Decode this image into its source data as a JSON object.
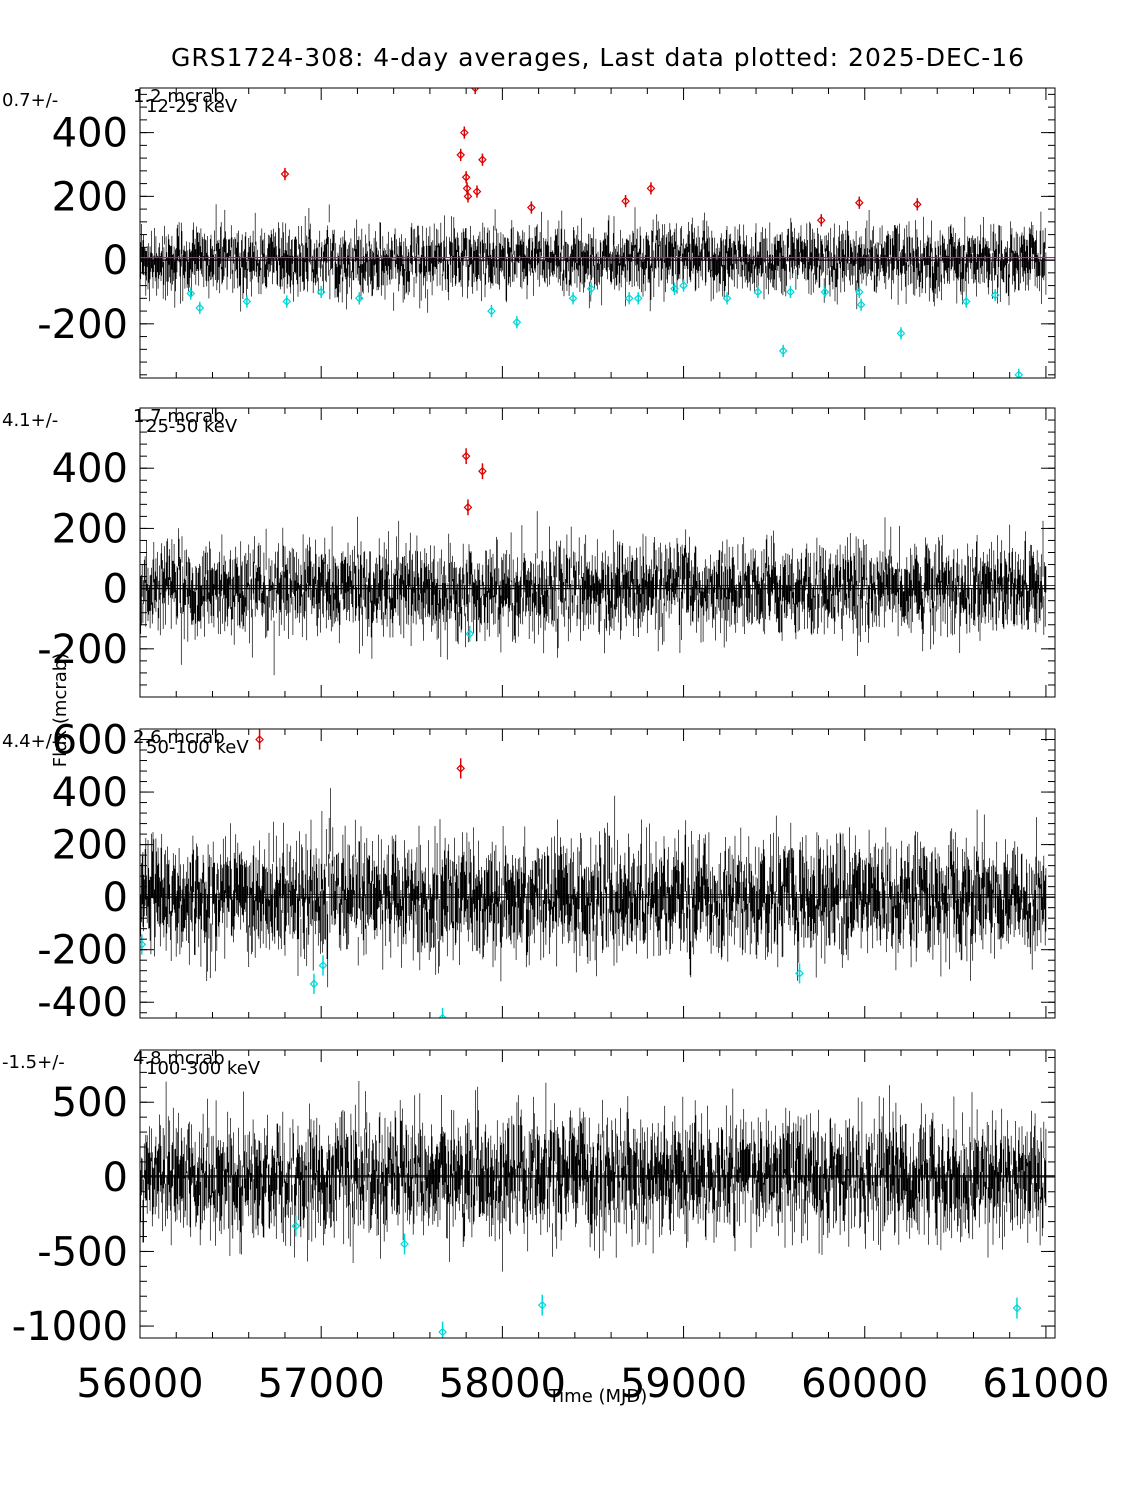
{
  "chart_data": {
    "type": "scatter",
    "title": "GRS1724-308:  4-day averages,  Last data plotted: 2025-DEC-16",
    "xlabel": "Time (MJD)",
    "ylabel": "Flux (mcrab)",
    "xlim": [
      56000,
      61050
    ],
    "xticks": [
      "56000",
      "57000",
      "58000",
      "59000",
      "60000",
      "61000"
    ],
    "colors": {
      "normal": "#000000",
      "high": "#dd0000",
      "low": "#00d8d8",
      "mean_line_top": "#dd00dd"
    },
    "panels": [
      {
        "band": "12-25 keV",
        "mean_text": "0.7+/-",
        "err_text": "1.2 mcrab",
        "ylim": [
          -370,
          540
        ],
        "yticks": [
          "-200",
          "0",
          "200",
          "400"
        ],
        "tick_values": [
          -200,
          0,
          200,
          400
        ],
        "noise_sigma": 55,
        "high_points": [
          [
            56800,
            270
          ],
          [
            57770,
            330
          ],
          [
            57790,
            400
          ],
          [
            57800,
            260
          ],
          [
            57805,
            225
          ],
          [
            57810,
            200
          ],
          [
            57850,
            540
          ],
          [
            57860,
            215
          ],
          [
            57890,
            315
          ],
          [
            58160,
            165
          ],
          [
            58680,
            185
          ],
          [
            58820,
            225
          ],
          [
            59970,
            180
          ],
          [
            60290,
            175
          ],
          [
            59760,
            125
          ]
        ],
        "low_points": [
          [
            56280,
            -105
          ],
          [
            56330,
            -150
          ],
          [
            56590,
            -130
          ],
          [
            56810,
            -130
          ],
          [
            57000,
            -100
          ],
          [
            57210,
            -120
          ],
          [
            57940,
            -160
          ],
          [
            58080,
            -195
          ],
          [
            58390,
            -120
          ],
          [
            58490,
            -90
          ],
          [
            58700,
            -120
          ],
          [
            58750,
            -120
          ],
          [
            58950,
            -90
          ],
          [
            59000,
            -80
          ],
          [
            59240,
            -120
          ],
          [
            59410,
            -100
          ],
          [
            59550,
            -285
          ],
          [
            59590,
            -100
          ],
          [
            59780,
            -100
          ],
          [
            59970,
            -100
          ],
          [
            59980,
            -140
          ],
          [
            60200,
            -230
          ],
          [
            60560,
            -130
          ],
          [
            60720,
            -110
          ],
          [
            60850,
            -360
          ]
        ]
      },
      {
        "band": "25-50 keV",
        "mean_text": "4.1+/-",
        "err_text": "1.7 mcrab",
        "ylim": [
          -360,
          600
        ],
        "yticks": [
          "-200",
          "0",
          "200",
          "400"
        ],
        "tick_values": [
          -200,
          0,
          200,
          400
        ],
        "noise_sigma": 75,
        "high_points": [
          [
            57800,
            440
          ],
          [
            57810,
            270
          ],
          [
            57890,
            390
          ]
        ],
        "low_points": [
          [
            57820,
            -150
          ]
        ]
      },
      {
        "band": "50-100 keV",
        "mean_text": "4.4+/-",
        "err_text": "2.6 mcrab",
        "ylim": [
          -460,
          640
        ],
        "yticks": [
          "-400",
          "-200",
          "0",
          "200",
          "400",
          "600"
        ],
        "tick_values": [
          -400,
          -200,
          0,
          200,
          400,
          600
        ],
        "noise_sigma": 110,
        "high_points": [
          [
            56660,
            600
          ],
          [
            57770,
            490
          ]
        ],
        "low_points": [
          [
            56010,
            -180
          ],
          [
            56960,
            -330
          ],
          [
            57010,
            -260
          ],
          [
            57670,
            -460
          ],
          [
            59640,
            -290
          ]
        ]
      },
      {
        "band": "100-300 keV",
        "mean_text": "-1.5+/-",
        "err_text": "4.8 mcrab",
        "ylim": [
          -1080,
          850
        ],
        "yticks": [
          "-1000",
          "-500",
          "0",
          "500"
        ],
        "tick_values": [
          -1000,
          -500,
          0,
          500
        ],
        "noise_sigma": 200,
        "high_points": [],
        "low_points": [
          [
            56860,
            -330
          ],
          [
            57460,
            -450
          ],
          [
            57670,
            -1040
          ],
          [
            58220,
            -860
          ],
          [
            60840,
            -880
          ]
        ]
      }
    ]
  }
}
